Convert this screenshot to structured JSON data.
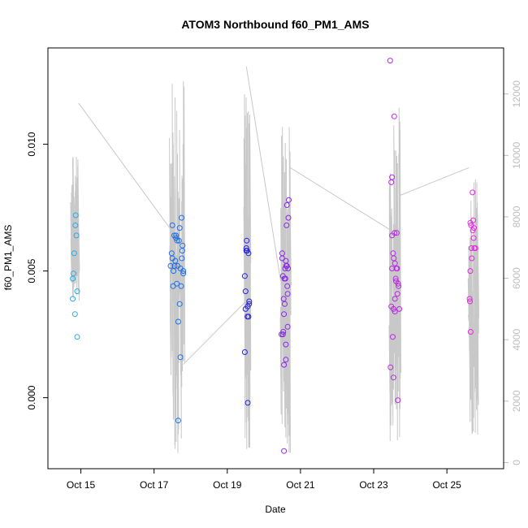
{
  "chart_data": {
    "type": "scatter",
    "title": "ATOM3 Northbound f60_PM1_AMS",
    "xlabel": "Date",
    "ylabel": "f60_PM1_AMS",
    "x_ticks": [
      {
        "day": 15,
        "label": "Oct 15"
      },
      {
        "day": 17,
        "label": "Oct 17"
      },
      {
        "day": 19,
        "label": "Oct 19"
      },
      {
        "day": 21,
        "label": "Oct 21"
      },
      {
        "day": 23,
        "label": "Oct 23"
      },
      {
        "day": 25,
        "label": "Oct 25"
      }
    ],
    "xlim_days": [
      14.1,
      26.55
    ],
    "ylim": [
      -0.0028,
      0.0138
    ],
    "y_ticks": [
      {
        "value": 0.0,
        "label": "0.000"
      },
      {
        "value": 0.005,
        "label": "0.005"
      },
      {
        "value": 0.01,
        "label": "0.010"
      }
    ],
    "y2_ticks": [
      {
        "value": 0,
        "label": "0"
      },
      {
        "value": 2000,
        "label": "2000"
      },
      {
        "value": 4000,
        "label": "4000"
      },
      {
        "value": 6000,
        "label": "6000"
      },
      {
        "value": 8000,
        "label": "8000"
      },
      {
        "value": 10000,
        "label": "10000"
      },
      {
        "value": 12000,
        "label": "12000"
      }
    ],
    "y2lim": [
      -200,
      13500
    ],
    "line_color": "#c8c8c8",
    "axis_color": "#000000",
    "right_axis_color": "#bdbdbd",
    "series": [
      {
        "color": "#2aa9e6",
        "points": [
          [
            14.78,
            0.0039
          ],
          [
            14.78,
            0.0047
          ],
          [
            14.8,
            0.0049
          ],
          [
            14.82,
            0.0057
          ],
          [
            14.84,
            0.0033
          ],
          [
            14.85,
            0.0068
          ],
          [
            14.86,
            0.0072
          ],
          [
            14.88,
            0.0064
          ],
          [
            14.9,
            0.0042
          ],
          [
            14.9,
            0.0024
          ]
        ]
      },
      {
        "color": "#1f6fe8",
        "points": [
          [
            17.45,
            0.0052
          ],
          [
            17.48,
            0.0057
          ],
          [
            17.5,
            0.0055
          ],
          [
            17.5,
            0.0068
          ],
          [
            17.52,
            0.0044
          ],
          [
            17.53,
            0.005
          ],
          [
            17.55,
            0.0064
          ],
          [
            17.56,
            0.0052
          ],
          [
            17.58,
            0.0054
          ],
          [
            17.6,
            0.0063
          ],
          [
            17.6,
            0.0064
          ],
          [
            17.62,
            0.0045
          ],
          [
            17.63,
            0.0062
          ],
          [
            17.64,
            0.0052
          ],
          [
            17.66,
            0.003
          ],
          [
            17.66,
            -0.0009
          ],
          [
            17.68,
            0.0062
          ],
          [
            17.7,
            0.0067
          ],
          [
            17.7,
            0.0037
          ],
          [
            17.72,
            0.0051
          ],
          [
            17.72,
            0.0016
          ],
          [
            17.74,
            0.0044
          ],
          [
            17.75,
            0.0071
          ],
          [
            17.76,
            0.0055
          ],
          [
            17.77,
            0.0058
          ],
          [
            17.78,
            0.006
          ],
          [
            17.8,
            0.005
          ],
          [
            17.8,
            0.0049
          ]
        ]
      },
      {
        "color": "#2424e0",
        "points": [
          [
            19.48,
            0.0048
          ],
          [
            19.48,
            0.0018
          ],
          [
            19.5,
            0.0035
          ],
          [
            19.5,
            0.0042
          ],
          [
            19.52,
            0.0058
          ],
          [
            19.52,
            0.0059
          ],
          [
            19.53,
            0.0062
          ],
          [
            19.54,
            0.0058
          ],
          [
            19.55,
            0.0032
          ],
          [
            19.56,
            -0.0002
          ],
          [
            19.56,
            0.0036
          ],
          [
            19.58,
            0.0057
          ],
          [
            19.58,
            0.0032
          ],
          [
            19.6,
            0.0037
          ],
          [
            19.6,
            0.0038
          ]
        ]
      },
      {
        "color": "#8a28e6",
        "points": [
          [
            20.48,
            0.0025
          ],
          [
            20.5,
            0.0057
          ],
          [
            20.5,
            0.0055
          ],
          [
            20.52,
            0.0048
          ],
          [
            20.52,
            0.0025
          ],
          [
            20.53,
            0.0026
          ],
          [
            20.54,
            0.0039
          ],
          [
            20.55,
            0.0013
          ],
          [
            20.55,
            -0.0021
          ],
          [
            20.56,
            0.0047
          ],
          [
            20.57,
            0.0037
          ],
          [
            20.58,
            0.0051
          ],
          [
            20.59,
            0.0047
          ],
          [
            20.6,
            0.0021
          ],
          [
            20.6,
            0.0015
          ],
          [
            20.61,
            0.0052
          ],
          [
            20.62,
            0.0068
          ],
          [
            20.63,
            0.0076
          ],
          [
            20.63,
            0.0052
          ],
          [
            20.64,
            0.0044
          ],
          [
            20.65,
            0.0028
          ],
          [
            20.65,
            0.0041
          ],
          [
            20.66,
            0.0051
          ],
          [
            20.67,
            0.0071
          ],
          [
            20.68,
            0.0078
          ],
          [
            20.6,
            0.0054
          ],
          [
            20.55,
            0.0033
          ]
        ]
      },
      {
        "color": "#bb28e6",
        "points": [
          [
            23.45,
            0.0133
          ],
          [
            23.46,
            0.0012
          ],
          [
            23.48,
            0.0036
          ],
          [
            23.48,
            0.0085
          ],
          [
            23.5,
            0.0087
          ],
          [
            23.5,
            0.0064
          ],
          [
            23.52,
            0.0024
          ],
          [
            23.53,
            0.0057
          ],
          [
            23.54,
            0.0008
          ],
          [
            23.54,
            0.0035
          ],
          [
            23.55,
            0.0055
          ],
          [
            23.56,
            0.0111
          ],
          [
            23.57,
            0.0065
          ],
          [
            23.58,
            0.0034
          ],
          [
            23.58,
            0.0039
          ],
          [
            23.6,
            0.0047
          ],
          [
            23.61,
            0.0046
          ],
          [
            23.62,
            0.0051
          ],
          [
            23.63,
            0.0065
          ],
          [
            23.64,
            0.0051
          ],
          [
            23.65,
            0.0041
          ],
          [
            23.66,
            -0.0001
          ],
          [
            23.67,
            0.0045
          ],
          [
            23.68,
            0.0044
          ],
          [
            23.7,
            0.0035
          ],
          [
            23.5,
            0.0051
          ],
          [
            23.58,
            0.0053
          ]
        ]
      },
      {
        "color": "#e628e0",
        "points": [
          [
            25.62,
            0.0039
          ],
          [
            25.63,
            0.0038
          ],
          [
            25.64,
            0.005
          ],
          [
            25.64,
            0.0069
          ],
          [
            25.65,
            0.0026
          ],
          [
            25.66,
            0.0068
          ],
          [
            25.67,
            0.0059
          ],
          [
            25.68,
            0.0055
          ],
          [
            25.7,
            0.0081
          ],
          [
            25.71,
            0.0066
          ],
          [
            25.72,
            0.007
          ],
          [
            25.73,
            0.0063
          ],
          [
            25.74,
            0.0067
          ],
          [
            25.75,
            0.0059
          ],
          [
            25.78,
            0.0059
          ]
        ]
      }
    ],
    "line_segments": [
      {
        "range": [
          14.72,
          14.94
        ],
        "y2_min": 5200,
        "y2_max": 10100
      },
      {
        "range": [
          17.42,
          17.82
        ],
        "y2_min": 300,
        "y2_max": 13200
      },
      {
        "range": [
          19.45,
          19.62
        ],
        "y2_min": 300,
        "y2_max": 12200
      },
      {
        "range": [
          20.45,
          20.72
        ],
        "y2_min": 300,
        "y2_max": 11200
      },
      {
        "range": [
          23.42,
          23.72
        ],
        "y2_min": 300,
        "y2_max": 11800
      },
      {
        "range": [
          25.58,
          25.85
        ],
        "y2_min": 900,
        "y2_max": 9400
      }
    ],
    "connectors": [
      [
        14.94,
        11700,
        17.45,
        7600
      ],
      [
        17.8,
        3200,
        19.47,
        5200
      ],
      [
        19.52,
        12900,
        20.46,
        5900
      ],
      [
        20.72,
        9600,
        23.42,
        7600
      ],
      [
        23.72,
        8700,
        25.6,
        9600
      ]
    ]
  }
}
